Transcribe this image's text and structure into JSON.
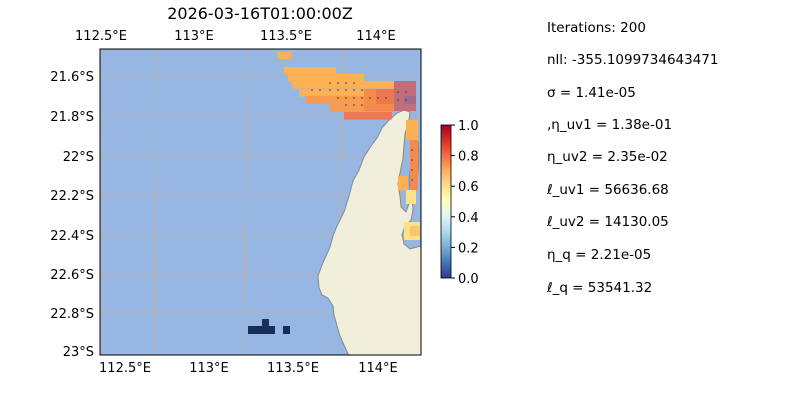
{
  "title": "2026-03-16T01:00:00Z",
  "map": {
    "lon_range": [
      112.5,
      114.2
    ],
    "lat_range": [
      -23.0,
      -21.47
    ],
    "top_lon_labels": [
      "112.5°E",
      "113°E",
      "113.5°E",
      "114°E"
    ],
    "bottom_lon_labels": [
      "112.5°E",
      "113°E",
      "113.5°E",
      "114°E"
    ],
    "lat_labels": [
      "21.6°S",
      "21.8°S",
      "22°S",
      "22.2°S",
      "22.4°S",
      "22.6°S",
      "22.8°S",
      "23°S"
    ],
    "colors": {
      "ocean": "#97b6e1",
      "land": "#efefdb",
      "coast": "#888888",
      "grid": "#b3b3b3"
    }
  },
  "colorbar": {
    "ticks": [
      "0.0",
      "0.2",
      "0.4",
      "0.6",
      "0.8",
      "1.0"
    ],
    "range": [
      0.0,
      1.0
    ],
    "colormap": "RdYlBu_r"
  },
  "stats": {
    "iterations": "Iterations: 200",
    "nll": "nll: -355.1099734643471",
    "sigma": "σ = 1.41e-05",
    "eta_uv1": ",η_uv1 = 1.38e-01",
    "eta_uv2": "η_uv2 = 2.35e-02",
    "ell_uv1": "ℓ_uv1 = 56636.68",
    "ell_uv2": "ℓ_uv2 = 14130.05",
    "eta_q": "η_q = 2.21e-05",
    "ell_q": "ℓ_q = 53541.32"
  }
}
